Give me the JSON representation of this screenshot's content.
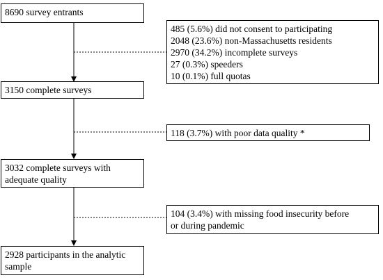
{
  "main_boxes": [
    {
      "lines": [
        "8690 survey entrants"
      ]
    },
    {
      "lines": [
        "3150 complete surveys"
      ]
    },
    {
      "lines": [
        "3032 complete surveys with",
        "adequate quality"
      ]
    },
    {
      "lines": [
        "2928 participants in the analytic",
        "sample"
      ]
    }
  ],
  "exclusion_boxes": [
    {
      "lines": [
        "485 (5.6%) did not consent to participating",
        "2048 (23.6%) non-Massachusetts residents",
        "2970 (34.2%) incomplete surveys",
        "27 (0.3%) speeders",
        "10 (0.1%) full quotas"
      ]
    },
    {
      "lines": [
        "118 (3.7%) with poor data quality *"
      ]
    },
    {
      "lines": [
        "104 (3.4%) with missing food insecurity before",
        "or during pandemic"
      ]
    }
  ]
}
